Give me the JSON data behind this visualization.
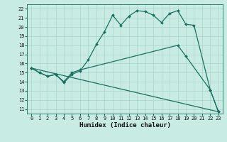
{
  "xlabel": "Humidex (Indice chaleur)",
  "bg_color": "#c8ece4",
  "grid_color": "#a8d4cc",
  "line_color": "#1a7060",
  "spine_color": "#1a7060",
  "xlim": [
    -0.5,
    23.5
  ],
  "ylim": [
    10.5,
    22.5
  ],
  "xticks": [
    0,
    1,
    2,
    3,
    4,
    5,
    6,
    7,
    8,
    9,
    10,
    11,
    12,
    13,
    14,
    15,
    16,
    17,
    18,
    19,
    20,
    21,
    22,
    23
  ],
  "yticks": [
    11,
    12,
    13,
    14,
    15,
    16,
    17,
    18,
    19,
    20,
    21,
    22
  ],
  "line1_x": [
    0,
    1,
    2,
    3,
    4,
    5,
    6,
    7,
    8,
    9,
    10,
    11,
    12,
    13,
    14,
    15,
    16,
    17,
    18,
    19,
    20,
    22,
    23
  ],
  "line1_y": [
    15.5,
    15.0,
    14.6,
    14.8,
    13.9,
    14.8,
    15.2,
    16.4,
    18.1,
    19.5,
    21.3,
    20.2,
    21.2,
    21.8,
    21.7,
    21.3,
    20.5,
    21.5,
    21.8,
    20.3,
    20.2,
    13.1,
    10.7
  ],
  "line2_x": [
    0,
    1,
    2,
    3,
    4,
    5,
    6,
    18,
    19,
    22,
    23
  ],
  "line2_y": [
    15.5,
    15.0,
    14.6,
    14.8,
    14.0,
    15.0,
    15.3,
    18.0,
    16.8,
    13.1,
    10.7
  ],
  "line3_x": [
    0,
    23
  ],
  "line3_y": [
    15.5,
    10.7
  ],
  "marker_size": 2.0,
  "line_width": 0.9,
  "tick_fontsize": 5.0,
  "xlabel_fontsize": 6.5
}
